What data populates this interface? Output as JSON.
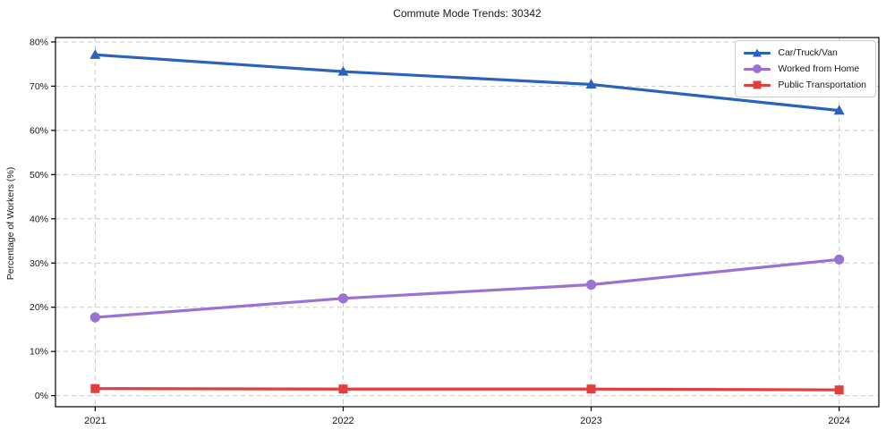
{
  "chart_data": {
    "type": "line",
    "title": "Commute Mode Trends: 30342",
    "xlabel": "",
    "ylabel": "Percentage of Workers (%)",
    "x": [
      2021,
      2022,
      2023,
      2024
    ],
    "x_tick_labels": [
      "2021",
      "2022",
      "2023",
      "2024"
    ],
    "yticks": [
      0,
      10,
      20,
      30,
      40,
      50,
      60,
      70,
      80
    ],
    "ytick_labels": [
      "0%",
      "10%",
      "20%",
      "30%",
      "40%",
      "50%",
      "60%",
      "70%",
      "80%"
    ],
    "xlim": [
      2020.84,
      2024.16
    ],
    "ylim": [
      -2.5,
      81
    ],
    "grid": "dashed-both-axes",
    "legend_position": "top-right",
    "series": [
      {
        "name": "Car/Truck/Van",
        "values": [
          77.1,
          73.3,
          70.4,
          64.5
        ],
        "color": "#2a63be",
        "marker": "triangle"
      },
      {
        "name": "Worked from Home",
        "values": [
          17.7,
          22.0,
          25.1,
          30.8
        ],
        "color": "#9b72d4",
        "marker": "circle"
      },
      {
        "name": "Public Transportation",
        "values": [
          1.6,
          1.5,
          1.5,
          1.3
        ],
        "color": "#e23e3e",
        "marker": "square"
      }
    ],
    "colors": {
      "grid": "#c9c9c9",
      "spine": "#000000",
      "tick_text": "#1a1a1a",
      "title_text": "#1a1a1a"
    }
  }
}
